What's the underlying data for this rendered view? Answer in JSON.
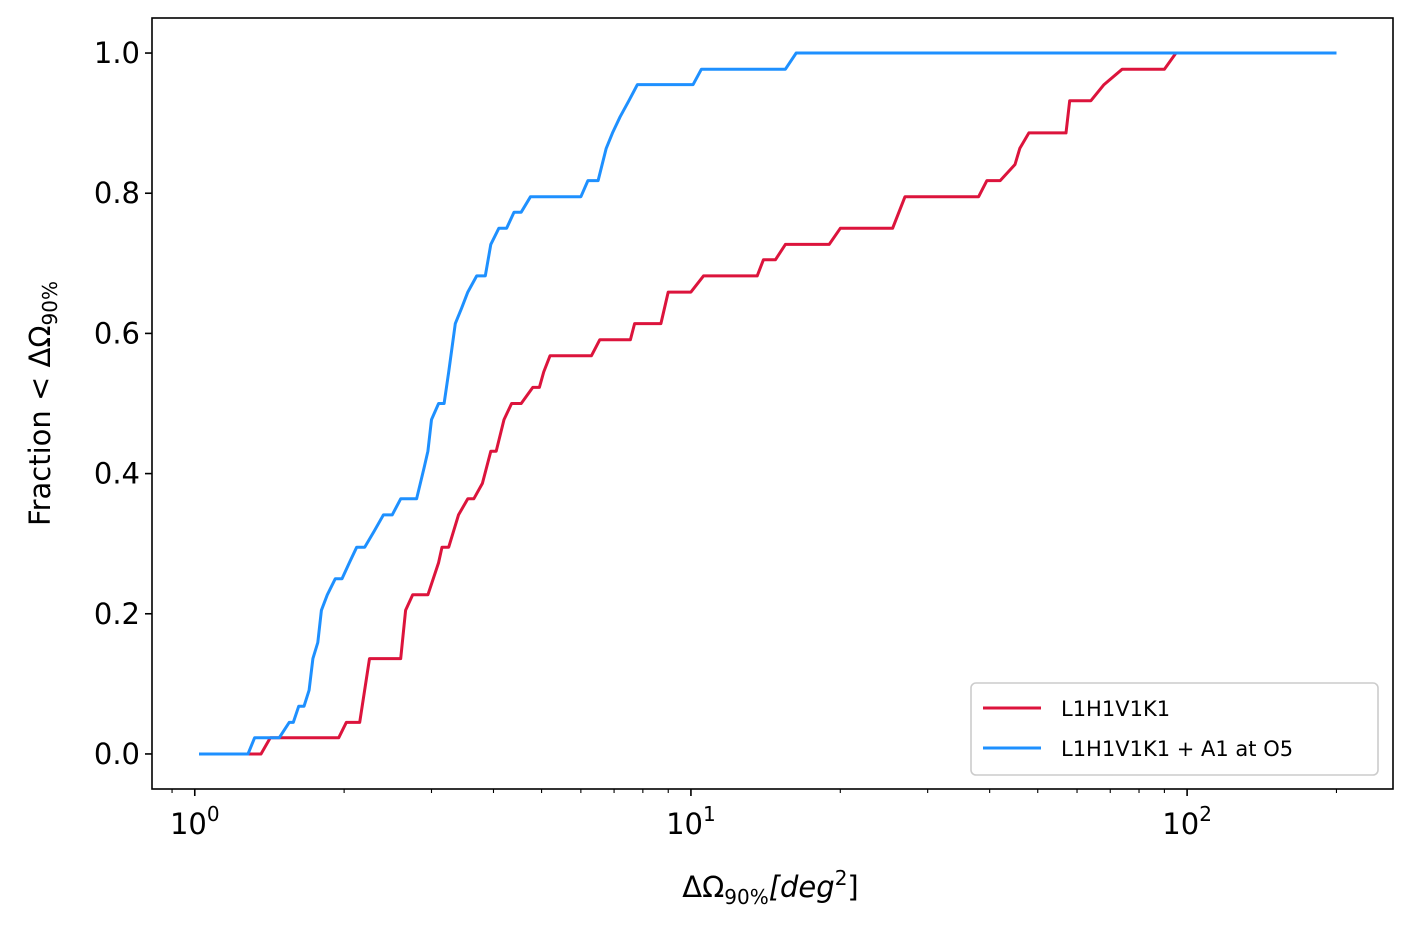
{
  "chart_data": {
    "type": "line",
    "xscale": "log",
    "xlim": [
      0.82,
      260
    ],
    "ylim": [
      -0.05,
      1.05
    ],
    "grid": false,
    "legend_position": "bottom-right",
    "xlabel": {
      "main": "ΔΩ",
      "sub": "90%",
      "unit": "[deg",
      "unit_sup": "2",
      "unit_close": "]"
    },
    "ylabel": {
      "main": "Fraction  < ΔΩ",
      "sub": "90%"
    },
    "x_ticks": [
      {
        "value": 1,
        "base": "10",
        "exp": "0"
      },
      {
        "value": 10,
        "base": "10",
        "exp": "1"
      },
      {
        "value": 100,
        "base": "10",
        "exp": "2"
      }
    ],
    "y_ticks": [
      "0.0",
      "0.2",
      "0.4",
      "0.6",
      "0.8",
      "1.0"
    ],
    "series": [
      {
        "name": "L1H1V1K1",
        "color": "#dc143c",
        "x": [
          1.02,
          1.3,
          1.36,
          1.42,
          1.45,
          1.95,
          2.02,
          2.15,
          2.25,
          2.4,
          2.6,
          2.66,
          2.75,
          2.95,
          3.1,
          3.15,
          3.25,
          3.4,
          3.55,
          3.65,
          3.8,
          3.95,
          4.05,
          4.2,
          4.35,
          4.55,
          4.8,
          4.95,
          5.05,
          5.2,
          6.3,
          6.55,
          7.55,
          7.7,
          8.7,
          9.0,
          10.0,
          10.6,
          13.6,
          14.0,
          14.8,
          15.5,
          19.0,
          20.0,
          25.5,
          27.0,
          38.0,
          39.5,
          42.0,
          45.0,
          46.0,
          48.0,
          53.0,
          57.0,
          58.0,
          64.0,
          68.0,
          74.0,
          90.0,
          95.0,
          98.0
        ],
        "y": [
          0.0,
          0.0,
          0.0,
          0.023,
          0.023,
          0.023,
          0.045,
          0.045,
          0.136,
          0.136,
          0.136,
          0.205,
          0.227,
          0.227,
          0.273,
          0.295,
          0.295,
          0.341,
          0.364,
          0.364,
          0.386,
          0.432,
          0.432,
          0.477,
          0.5,
          0.5,
          0.523,
          0.523,
          0.545,
          0.568,
          0.568,
          0.591,
          0.591,
          0.614,
          0.614,
          0.659,
          0.659,
          0.682,
          0.682,
          0.705,
          0.705,
          0.727,
          0.727,
          0.75,
          0.75,
          0.795,
          0.795,
          0.818,
          0.818,
          0.841,
          0.864,
          0.886,
          0.886,
          0.886,
          0.932,
          0.932,
          0.955,
          0.977,
          0.977,
          1.0,
          1.0
        ]
      },
      {
        "name": "L1H1V1K1 + A1 at O5",
        "color": "#1e90ff",
        "x": [
          1.02,
          1.2,
          1.28,
          1.32,
          1.4,
          1.48,
          1.55,
          1.58,
          1.62,
          1.66,
          1.7,
          1.73,
          1.77,
          1.8,
          1.85,
          1.92,
          1.98,
          2.05,
          2.12,
          2.2,
          2.3,
          2.4,
          2.5,
          2.6,
          2.7,
          2.8,
          2.9,
          2.95,
          3.0,
          3.1,
          3.18,
          3.25,
          3.35,
          3.45,
          3.55,
          3.7,
          3.85,
          3.95,
          4.1,
          4.25,
          4.4,
          4.55,
          4.75,
          5.0,
          5.2,
          6.0,
          6.2,
          6.5,
          6.75,
          6.95,
          7.2,
          7.5,
          7.8,
          8.1,
          8.4,
          9.0,
          10.1,
          10.5,
          11.0,
          15.5,
          16.3,
          17.0,
          100.0,
          200.0
        ],
        "y": [
          0.0,
          0.0,
          0.0,
          0.023,
          0.023,
          0.023,
          0.045,
          0.045,
          0.068,
          0.068,
          0.091,
          0.136,
          0.159,
          0.205,
          0.227,
          0.25,
          0.25,
          0.273,
          0.295,
          0.295,
          0.318,
          0.341,
          0.341,
          0.364,
          0.364,
          0.364,
          0.409,
          0.432,
          0.477,
          0.5,
          0.5,
          0.545,
          0.614,
          0.636,
          0.659,
          0.682,
          0.682,
          0.727,
          0.75,
          0.75,
          0.773,
          0.773,
          0.795,
          0.795,
          0.795,
          0.795,
          0.818,
          0.818,
          0.864,
          0.886,
          0.909,
          0.932,
          0.955,
          0.955,
          0.955,
          0.955,
          0.955,
          0.977,
          0.977,
          0.977,
          1.0,
          1.0,
          1.0,
          1.0
        ]
      }
    ]
  }
}
